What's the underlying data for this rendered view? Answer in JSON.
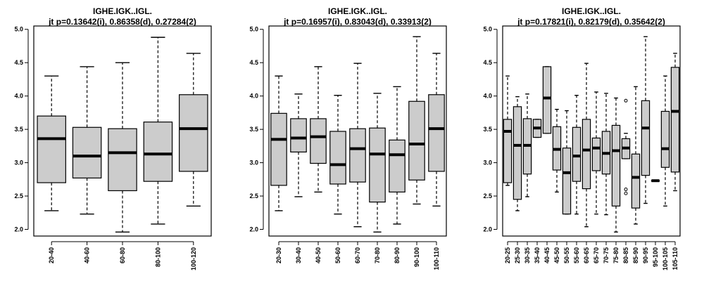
{
  "chart_data": [
    {
      "type": "boxplot",
      "title": "IGHE.IGK..IGL.",
      "subtitle": "jt p=0.13642(i), 0.86358(d), 0.27284(2)",
      "ylim": [
        1.9,
        5.05
      ],
      "yticks": [
        2.0,
        2.5,
        3.0,
        3.5,
        4.0,
        4.5,
        5.0
      ],
      "box_fill": "#cccccc",
      "categories": [
        "20-40",
        "40-60",
        "60-80",
        "80-100",
        "100-120"
      ],
      "boxes": [
        {
          "min": 2.28,
          "q1": 2.7,
          "median": 3.36,
          "q3": 3.7,
          "max": 4.3
        },
        {
          "min": 2.23,
          "q1": 2.77,
          "median": 3.1,
          "q3": 3.53,
          "max": 4.44
        },
        {
          "min": 1.96,
          "q1": 2.58,
          "median": 3.15,
          "q3": 3.51,
          "max": 4.5
        },
        {
          "min": 2.08,
          "q1": 2.72,
          "median": 3.13,
          "q3": 3.61,
          "max": 4.88
        },
        {
          "min": 2.35,
          "q1": 2.87,
          "median": 3.51,
          "q3": 4.02,
          "max": 4.64
        }
      ]
    },
    {
      "type": "boxplot",
      "title": "IGHE.IGK..IGL.",
      "subtitle": "jt p=0.16957(i), 0.83043(d), 0.33913(2)",
      "ylim": [
        1.9,
        5.05
      ],
      "yticks": [
        2.0,
        2.5,
        3.0,
        3.5,
        4.0,
        4.5,
        5.0
      ],
      "box_fill": "#cccccc",
      "categories": [
        "20-30",
        "30-40",
        "40-50",
        "50-60",
        "60-70",
        "70-80",
        "80-90",
        "90-100",
        "100-110"
      ],
      "boxes": [
        {
          "min": 2.28,
          "q1": 2.66,
          "median": 3.35,
          "q3": 3.74,
          "max": 4.3
        },
        {
          "min": 2.49,
          "q1": 3.16,
          "median": 3.37,
          "q3": 3.66,
          "max": 4.03
        },
        {
          "min": 2.56,
          "q1": 2.99,
          "median": 3.39,
          "q3": 3.66,
          "max": 4.44
        },
        {
          "min": 2.23,
          "q1": 2.68,
          "median": 2.97,
          "q3": 3.47,
          "max": 4.01
        },
        {
          "min": 2.04,
          "q1": 2.71,
          "median": 3.21,
          "q3": 3.51,
          "max": 4.49
        },
        {
          "min": 1.96,
          "q1": 2.41,
          "median": 3.13,
          "q3": 3.52,
          "max": 4.04
        },
        {
          "min": 2.08,
          "q1": 2.56,
          "median": 3.12,
          "q3": 3.34,
          "max": 4.14
        },
        {
          "min": 2.38,
          "q1": 2.74,
          "median": 3.28,
          "q3": 3.92,
          "max": 4.89
        },
        {
          "min": 2.35,
          "q1": 2.87,
          "median": 3.51,
          "q3": 4.02,
          "max": 4.64
        }
      ]
    },
    {
      "type": "boxplot",
      "title": "IGHE.IGK..IGL.",
      "subtitle": "jt p=0.17821(i), 0.82179(d), 0.35642(2)",
      "ylim": [
        1.9,
        5.05
      ],
      "yticks": [
        2.0,
        2.5,
        3.0,
        3.5,
        4.0,
        4.5,
        5.0
      ],
      "box_fill": "#cccccc",
      "categories": [
        "20-25",
        "25-30",
        "30-35",
        "35-40",
        "40-45",
        "45-50",
        "50-55",
        "55-60",
        "60-65",
        "65-70",
        "70-75",
        "75-80",
        "80-85",
        "85-90",
        "90-95",
        "95-100",
        "100-105",
        "105-110"
      ],
      "boxes": [
        {
          "min": 2.66,
          "q1": 2.7,
          "median": 3.47,
          "q3": 3.65,
          "max": 4.3
        },
        {
          "min": 2.28,
          "q1": 2.45,
          "median": 3.26,
          "q3": 3.84,
          "max": 3.99
        },
        {
          "min": 2.49,
          "q1": 2.83,
          "median": 3.26,
          "q3": 3.66,
          "max": 4.03
        },
        {
          "min": 3.38,
          "q1": 3.38,
          "median": 3.52,
          "q3": 3.65,
          "max": 3.65
        },
        {
          "min": 3.44,
          "q1": 3.44,
          "median": 3.97,
          "q3": 4.44,
          "max": 4.44
        },
        {
          "min": 2.56,
          "q1": 2.89,
          "median": 3.2,
          "q3": 3.54,
          "max": 3.8
        },
        {
          "min": 2.23,
          "q1": 2.23,
          "median": 2.85,
          "q3": 3.22,
          "max": 3.78
        },
        {
          "min": 2.23,
          "q1": 2.72,
          "median": 3.1,
          "q3": 3.53,
          "max": 4.01
        },
        {
          "min": 2.04,
          "q1": 2.61,
          "median": 3.19,
          "q3": 3.65,
          "max": 4.49
        },
        {
          "min": 2.23,
          "q1": 2.88,
          "median": 3.22,
          "q3": 3.37,
          "max": 4.06
        },
        {
          "min": 2.22,
          "q1": 2.83,
          "median": 3.14,
          "q3": 3.47,
          "max": 4.04
        },
        {
          "min": 1.96,
          "q1": 2.35,
          "median": 3.18,
          "q3": 3.56,
          "max": 3.97
        },
        {
          "min": 3.06,
          "q1": 3.06,
          "median": 3.22,
          "q3": 3.36,
          "max": 3.44,
          "outliers": [
            2.6,
            2.54,
            3.93
          ]
        },
        {
          "min": 2.08,
          "q1": 2.32,
          "median": 2.78,
          "q3": 3.13,
          "max": 4.14
        },
        {
          "min": 2.39,
          "q1": 2.81,
          "median": 3.52,
          "q3": 3.93,
          "max": 4.89
        },
        {
          "min": 2.73,
          "q1": 2.73,
          "median": 2.73,
          "q3": 2.73,
          "max": 2.73
        },
        {
          "min": 2.35,
          "q1": 2.93,
          "median": 3.21,
          "q3": 3.77,
          "max": 4.3
        },
        {
          "min": 2.58,
          "q1": 2.86,
          "median": 3.77,
          "q3": 4.43,
          "max": 4.64
        }
      ]
    }
  ]
}
